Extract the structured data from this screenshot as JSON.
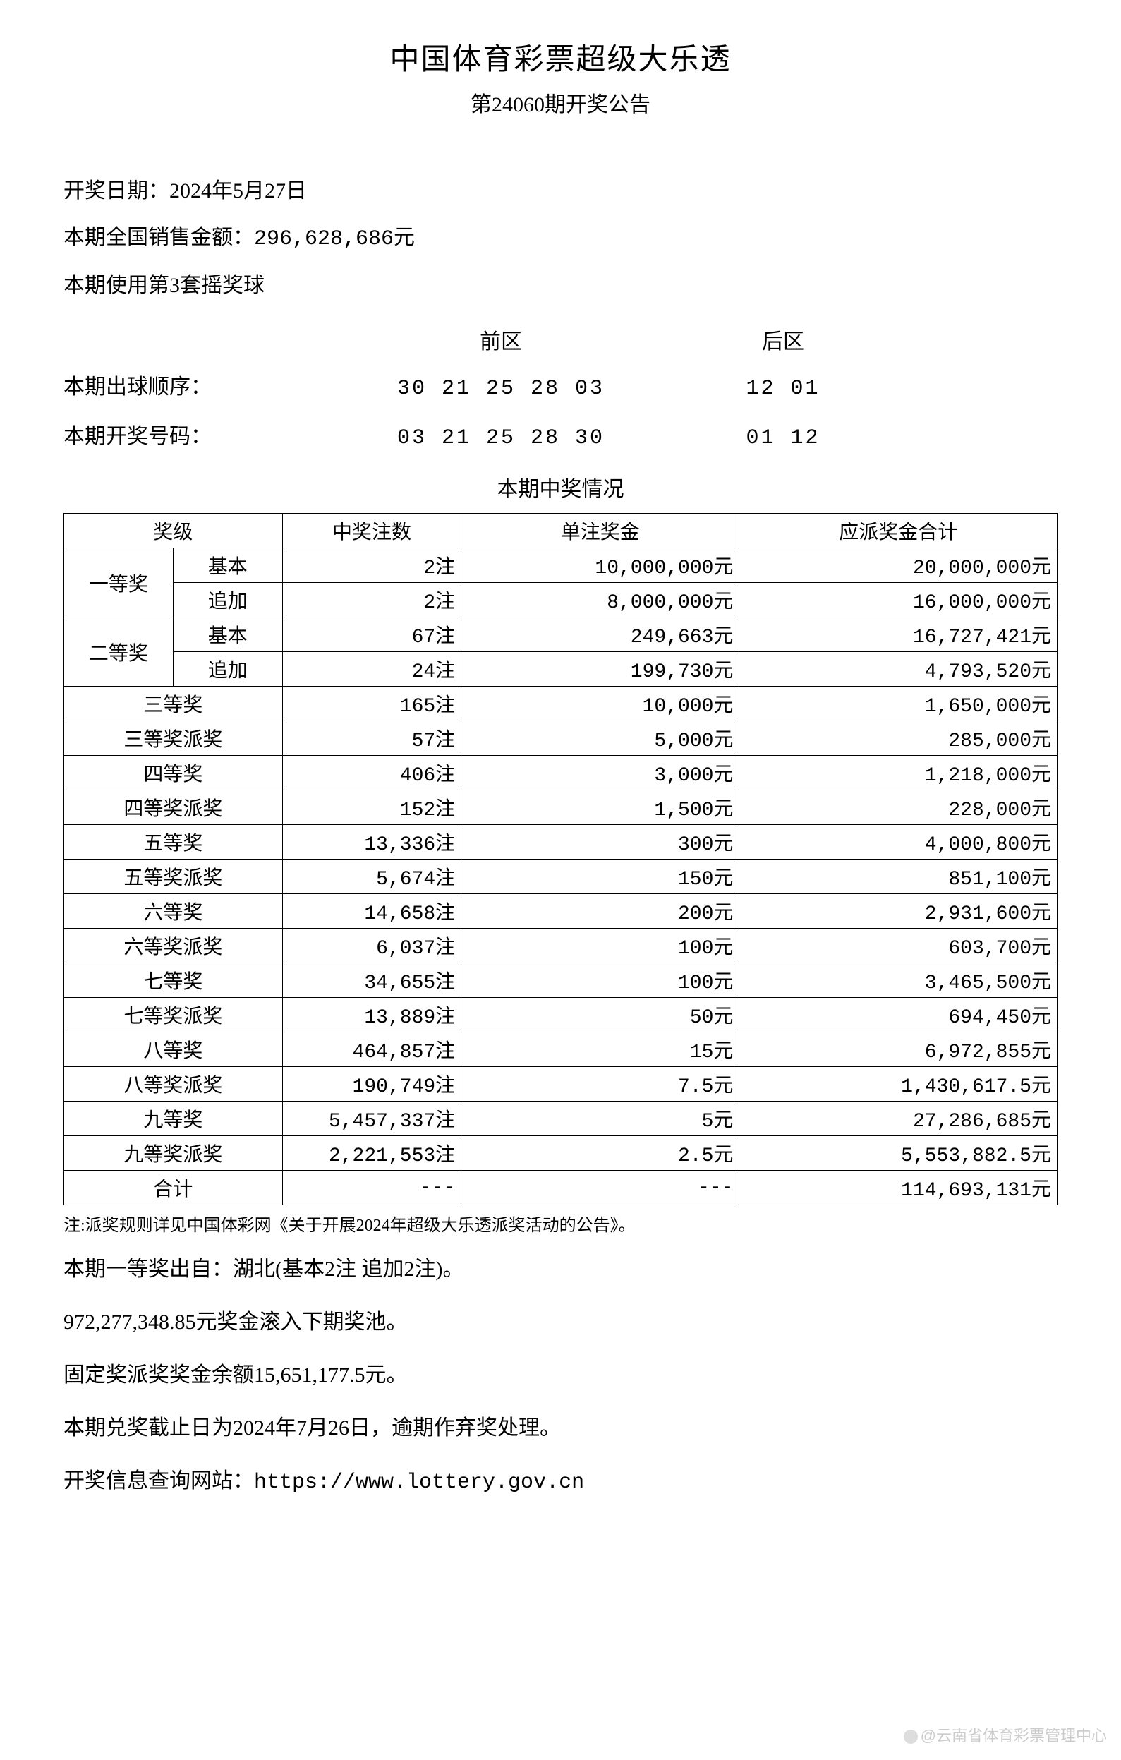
{
  "header": {
    "title_main": "中国体育彩票超级大乐透",
    "title_sub": "第24060期开奖公告"
  },
  "info": {
    "draw_date_label": "开奖日期：",
    "draw_date": "2024年5月27日",
    "sales_label": "本期全国销售金额：",
    "sales_amount": "296,628,686元",
    "ball_set_label": "本期使用第3套摇奖球"
  },
  "numbers": {
    "front_area_label": "前区",
    "back_area_label": "后区",
    "draw_order_label": "本期出球顺序：",
    "draw_order_front": "30 21 25 28 03",
    "draw_order_back": "12 01",
    "winning_label": "本期开奖号码：",
    "winning_front": "03 21 25 28 30",
    "winning_back": "01 12"
  },
  "prize_section_title": "本期中奖情况",
  "table": {
    "headers": {
      "tier": "奖级",
      "count": "中奖注数",
      "single": "单注奖金",
      "total": "应派奖金合计"
    },
    "tier1": "一等奖",
    "tier2": "二等奖",
    "basic": "基本",
    "bonus": "追加",
    "rows": [
      {
        "tier": "一等奖-基本",
        "count": "2注",
        "single": "10,000,000元",
        "total": "20,000,000元"
      },
      {
        "tier": "一等奖-追加",
        "count": "2注",
        "single": "8,000,000元",
        "total": "16,000,000元"
      },
      {
        "tier": "二等奖-基本",
        "count": "67注",
        "single": "249,663元",
        "total": "16,727,421元"
      },
      {
        "tier": "二等奖-追加",
        "count": "24注",
        "single": "199,730元",
        "total": "4,793,520元"
      },
      {
        "tier": "三等奖",
        "count": "165注",
        "single": "10,000元",
        "total": "1,650,000元"
      },
      {
        "tier": "三等奖派奖",
        "count": "57注",
        "single": "5,000元",
        "total": "285,000元"
      },
      {
        "tier": "四等奖",
        "count": "406注",
        "single": "3,000元",
        "total": "1,218,000元"
      },
      {
        "tier": "四等奖派奖",
        "count": "152注",
        "single": "1,500元",
        "total": "228,000元"
      },
      {
        "tier": "五等奖",
        "count": "13,336注",
        "single": "300元",
        "total": "4,000,800元"
      },
      {
        "tier": "五等奖派奖",
        "count": "5,674注",
        "single": "150元",
        "total": "851,100元"
      },
      {
        "tier": "六等奖",
        "count": "14,658注",
        "single": "200元",
        "total": "2,931,600元"
      },
      {
        "tier": "六等奖派奖",
        "count": "6,037注",
        "single": "100元",
        "total": "603,700元"
      },
      {
        "tier": "七等奖",
        "count": "34,655注",
        "single": "100元",
        "total": "3,465,500元"
      },
      {
        "tier": "七等奖派奖",
        "count": "13,889注",
        "single": "50元",
        "total": "694,450元"
      },
      {
        "tier": "八等奖",
        "count": "464,857注",
        "single": "15元",
        "total": "6,972,855元"
      },
      {
        "tier": "八等奖派奖",
        "count": "190,749注",
        "single": "7.5元",
        "total": "1,430,617.5元"
      },
      {
        "tier": "九等奖",
        "count": "5,457,337注",
        "single": "5元",
        "total": "27,286,685元"
      },
      {
        "tier": "九等奖派奖",
        "count": "2,221,553注",
        "single": "2.5元",
        "total": "5,553,882.5元"
      }
    ],
    "total_label": "合计",
    "total_dash": "---",
    "grand_total": "114,693,131元"
  },
  "note": "注:派奖规则详见中国体彩网《关于开展2024年超级大乐透派奖活动的公告》。",
  "footer": {
    "line1": "本期一等奖出自：湖北(基本2注 追加2注)。",
    "line2": "972,277,348.85元奖金滚入下期奖池。",
    "line3": "固定奖派奖奖金余额15,651,177.5元。",
    "line4": "本期兑奖截止日为2024年7月26日，逾期作弃奖处理。",
    "line5_label": "开奖信息查询网站：",
    "line5_url": "https://www.lottery.gov.cn"
  },
  "watermark": "@云南省体育彩票管理中心",
  "styling": {
    "background_color": "#ffffff",
    "text_color": "#000000",
    "border_color": "#000000",
    "watermark_color": "#cccccc",
    "body_font_size": 28,
    "title_font_size": 42,
    "sub_title_font_size": 30,
    "note_font_size": 24,
    "col_widths": {
      "tier": "22%",
      "count": "18%",
      "single": "28%",
      "total": "32%"
    }
  }
}
